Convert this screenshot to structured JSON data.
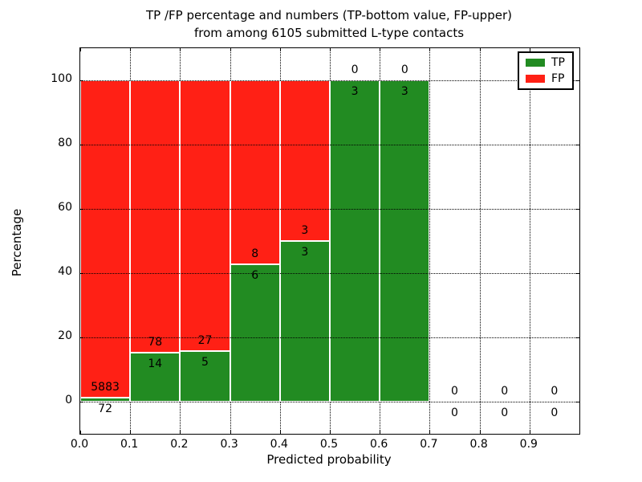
{
  "title": {
    "line1": "TP /FP percentage and numbers (TP-bottom value, FP-upper)",
    "line2": "from among 6105 submitted L-type contacts"
  },
  "axes": {
    "ylabel": "Percentage",
    "xlabel": "Predicted probability",
    "ytick_labels": [
      "0",
      "20",
      "40",
      "60",
      "80",
      "100"
    ],
    "ytick_values": [
      0,
      20,
      40,
      60,
      80,
      100
    ],
    "xtick_labels": [
      "0.0",
      "0.1",
      "0.2",
      "0.3",
      "0.4",
      "0.5",
      "0.6",
      "0.7",
      "0.8",
      "0.9"
    ],
    "xtick_values": [
      0.0,
      0.1,
      0.2,
      0.3,
      0.4,
      0.5,
      0.6,
      0.7,
      0.8,
      0.9
    ]
  },
  "legend": {
    "position": "upper-right",
    "items": [
      {
        "label": "TP",
        "color": "#228B22"
      },
      {
        "label": "FP",
        "color": "#FF2015"
      }
    ]
  },
  "colors": {
    "tp_green": "#228B22",
    "fp_red": "#FF2015",
    "grid": "#000000",
    "background": "#FFFFFF"
  },
  "chart_data": {
    "type": "bar",
    "stacked": true,
    "title": "TP /FP percentage and numbers (TP-bottom value, FP-upper) from among 6105 submitted L-type contacts",
    "xlabel": "Predicted probability",
    "ylabel": "Percentage",
    "xlim": [
      0.0,
      1.0
    ],
    "ylim": [
      -10,
      110
    ],
    "grid": true,
    "legend_position": "upper right",
    "total_contacts": 6105,
    "bin_width": 0.1,
    "bin_starts": [
      0.0,
      0.1,
      0.2,
      0.3,
      0.4,
      0.5,
      0.6,
      0.7,
      0.8,
      0.9
    ],
    "categories": [
      "0.0-0.1",
      "0.1-0.2",
      "0.2-0.3",
      "0.3-0.4",
      "0.4-0.5",
      "0.5-0.6",
      "0.6-0.7",
      "0.7-0.8",
      "0.8-0.9",
      "0.9-1.0"
    ],
    "series": [
      {
        "name": "TP",
        "color": "#228B22",
        "counts": [
          72,
          14,
          5,
          6,
          3,
          3,
          3,
          0,
          0,
          0
        ],
        "count_labels": [
          "72",
          "14",
          "5",
          "6",
          "3",
          "3",
          "3",
          "0",
          "0",
          "0"
        ],
        "percent": [
          1.21,
          15.22,
          15.63,
          42.86,
          50.0,
          100.0,
          100.0,
          0.0,
          0.0,
          0.0
        ]
      },
      {
        "name": "FP",
        "color": "#FF2015",
        "counts": [
          5883,
          78,
          27,
          8,
          3,
          0,
          0,
          0,
          0,
          0
        ],
        "count_labels": [
          "5883",
          "78",
          "27",
          "8",
          "3",
          "0",
          "0",
          "0",
          "0",
          "0"
        ],
        "percent": [
          98.79,
          84.78,
          84.37,
          57.14,
          50.0,
          0.0,
          0.0,
          0.0,
          0.0,
          0.0
        ]
      }
    ]
  }
}
